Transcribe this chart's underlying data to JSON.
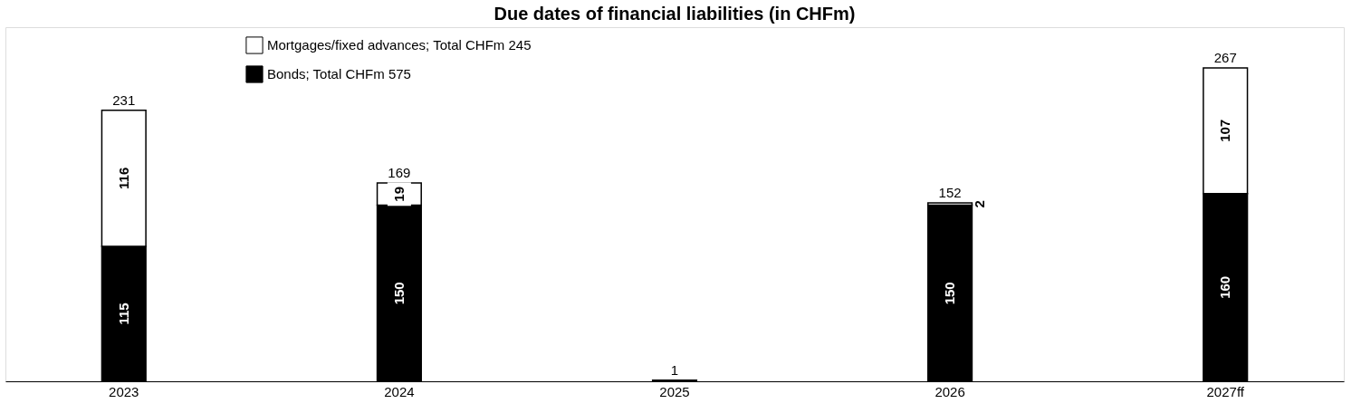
{
  "chart_data": {
    "type": "bar",
    "title": "Due dates of financial liabilities (in CHFm)",
    "categories": [
      "2023",
      "2024",
      "2025",
      "2026",
      "2027ff"
    ],
    "stacked": true,
    "legend": "top left",
    "series": [
      {
        "name": "Bonds; Total CHFm 575",
        "color": "#000000",
        "values": [
          115,
          150,
          null,
          150,
          160
        ],
        "value_labels": [
          "115",
          "150",
          null,
          "150",
          "160"
        ]
      },
      {
        "name": "Mortgages/fixed advances; Total CHFm 245",
        "color": "#ffffff",
        "values": [
          116,
          19,
          1,
          2,
          107
        ],
        "value_labels": [
          "116",
          "19",
          null,
          "2",
          "107"
        ]
      }
    ],
    "totals": [
      "231",
      "169",
      "1",
      "152",
      "267"
    ]
  }
}
